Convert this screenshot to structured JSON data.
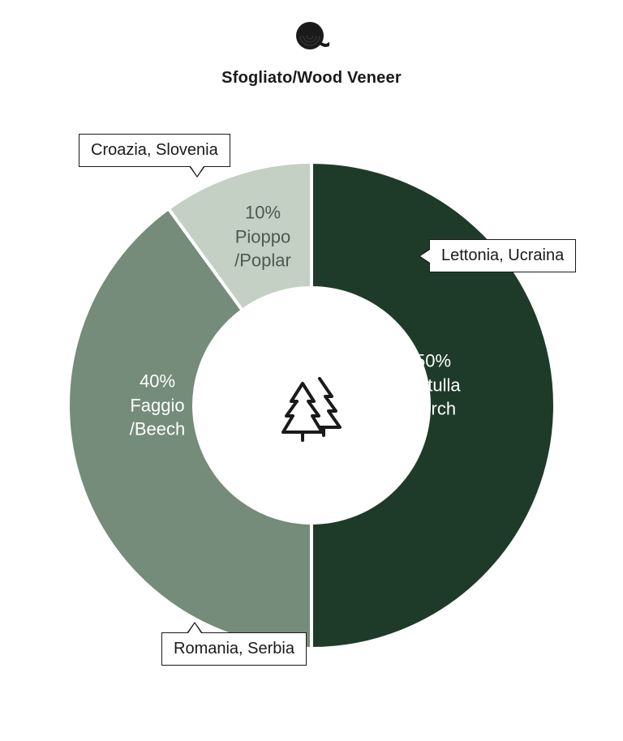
{
  "header": {
    "title": "Sfogliato/Wood Veneer",
    "icon_name": "wood-log-icon"
  },
  "chart": {
    "type": "donut",
    "background_color": "#ffffff",
    "stroke_color": "#ffffff",
    "stroke_width": 4,
    "outer_radius": 300,
    "inner_radius": 145,
    "center_icon": "trees-icon",
    "center_icon_color": "#1a1a1a",
    "label_fontsize": 22,
    "callout_fontsize": 20,
    "callout_border_color": "#1a1a1a",
    "callout_bg": "#ffffff",
    "slices": [
      {
        "value": 50,
        "color": "#1e3b29",
        "label_percent": "50%",
        "label_line1": "Betulla",
        "label_line2": "/Birch",
        "label_text_color": "#ffffff",
        "callout": "Lettonia, Ucraina"
      },
      {
        "value": 40,
        "color": "#748c79",
        "label_percent": "40%",
        "label_line1": "Faggio",
        "label_line2": "/Beech",
        "label_text_color": "#ffffff",
        "callout": "Romania, Serbia"
      },
      {
        "value": 10,
        "color": "#c4d0c4",
        "label_percent": "10%",
        "label_line1": "Pioppo",
        "label_line2": "/Poplar",
        "label_text_color": "#4a5a4f",
        "callout": "Croazia, Slovenia"
      }
    ]
  }
}
